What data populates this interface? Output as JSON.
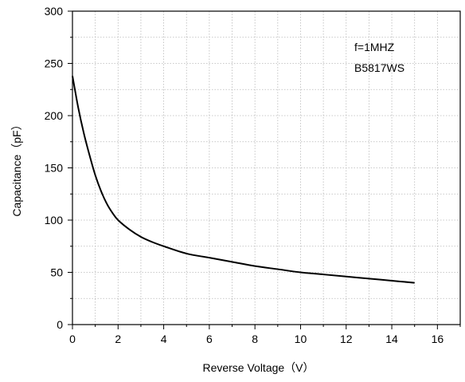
{
  "chart_data": {
    "type": "line",
    "title": "",
    "xlabel": "Reverse Voltage（V）",
    "ylabel": "Capacitance（pF）",
    "xlim": [
      0,
      17
    ],
    "ylim": [
      0,
      300
    ],
    "x_ticks": [
      0,
      2,
      4,
      6,
      8,
      10,
      12,
      14,
      16
    ],
    "y_ticks": [
      0,
      50,
      100,
      150,
      200,
      250,
      300
    ],
    "x_minor_step": 1,
    "y_minor_step": 25,
    "grid": true,
    "annotations": [
      "f=1MHZ",
      "B5817WS"
    ],
    "series": [
      {
        "x": [
          0,
          0.25,
          0.5,
          0.75,
          1.0,
          1.25,
          1.5,
          1.75,
          2.0,
          2.5,
          3.0,
          3.5,
          4.0,
          5.0,
          6.0,
          7.0,
          8.0,
          9.0,
          10.0,
          11.0,
          12.0,
          13.0,
          14.0,
          15.0
        ],
        "values": [
          238,
          208,
          183,
          162,
          143,
          128,
          116,
          107,
          100,
          91,
          84,
          79,
          75,
          68,
          64,
          60,
          56,
          53,
          50,
          48,
          46,
          44,
          42,
          40
        ]
      }
    ]
  }
}
